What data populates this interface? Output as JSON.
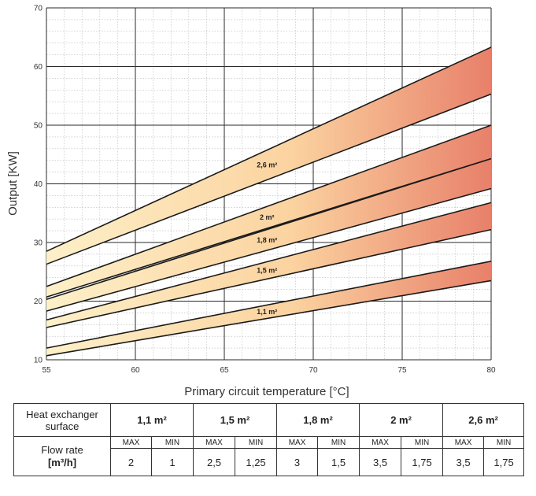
{
  "chart_data": {
    "type": "area",
    "xlabel": "Primary circuit temperature [°C]",
    "ylabel": "Output [KW]",
    "xlim": [
      55,
      80
    ],
    "ylim": [
      10,
      70
    ],
    "xticks": [
      55,
      60,
      65,
      70,
      75,
      80
    ],
    "yticks": [
      10,
      20,
      30,
      40,
      50,
      60,
      70
    ],
    "grid": true,
    "series": [
      {
        "name": "1,1 m²",
        "x": [
          55,
          80
        ],
        "min": [
          10.7,
          23.5
        ],
        "max": [
          12.0,
          26.8
        ],
        "color": "#e8806a"
      },
      {
        "name": "1,5 m²",
        "x": [
          55,
          80
        ],
        "min": [
          15.5,
          32.2
        ],
        "max": [
          16.8,
          36.8
        ],
        "color": "#e8806a"
      },
      {
        "name": "1,8 m²",
        "x": [
          55,
          80
        ],
        "min": [
          18.3,
          39.2
        ],
        "max": [
          20.3,
          44.3
        ],
        "color": "#e8806a"
      },
      {
        "name": "2 m²",
        "x": [
          55,
          80
        ],
        "min": [
          20.7,
          44.3
        ],
        "max": [
          22.5,
          50.0
        ],
        "color": "#e8806a"
      },
      {
        "name": "2,6 m²",
        "x": [
          55,
          80
        ],
        "min": [
          26.3,
          55.3
        ],
        "max": [
          28.5,
          63.3
        ],
        "color": "#e8806a"
      }
    ]
  },
  "table": {
    "surface_label": "Heat exchanger surface",
    "flow_label": "Flow rate",
    "flow_unit": "[m³/h]",
    "max_label": "MAX",
    "min_label": "MIN",
    "columns": [
      {
        "area": "1,1 m²",
        "max": "2",
        "min": "1"
      },
      {
        "area": "1,5 m²",
        "max": "2,5",
        "min": "1,25"
      },
      {
        "area": "1,8 m²",
        "max": "3",
        "min": "1,5"
      },
      {
        "area": "2 m²",
        "max": "3,5",
        "min": "1,75"
      },
      {
        "area": "2,6 m²",
        "max": "3,5",
        "min": "1,75"
      }
    ]
  }
}
